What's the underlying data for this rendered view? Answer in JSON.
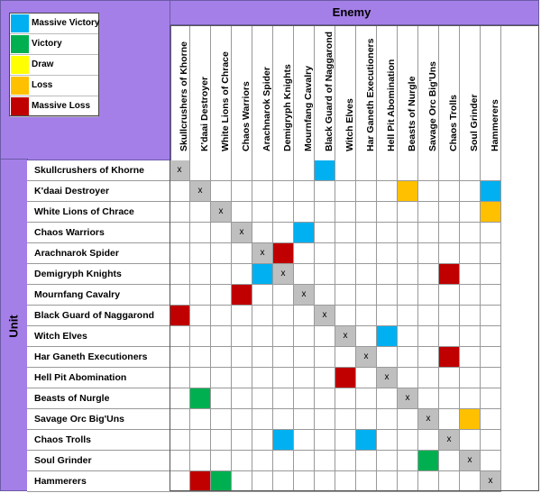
{
  "legend": [
    {
      "label": "Massive Victory",
      "color": "#00b0f0"
    },
    {
      "label": "Victory",
      "color": "#00b050"
    },
    {
      "label": "Draw",
      "color": "#ffff00"
    },
    {
      "label": "Loss",
      "color": "#ffc000"
    },
    {
      "label": "Massive Loss",
      "color": "#c00000"
    }
  ],
  "enemy_title": "Enemy",
  "unit_title": "Unit",
  "units": [
    "Skullcrushers of Khorne",
    "K'daai Destroyer",
    "White Lions of Chrace",
    "Chaos Warriors",
    "Arachnarok Spider",
    "Demigryph Knights",
    "Mournfang Cavalry",
    "Black Guard of Naggarond",
    "Witch Elves",
    "Har Ganeth Executioners",
    "Hell Pit Abomination",
    "Beasts of Nurgle",
    "Savage Orc Big'Uns",
    "Chaos Trolls",
    "Soul Grinder",
    "Hammerers"
  ],
  "self_marker": "x",
  "self_color": "#bfbfbf",
  "results": [
    {
      "row": 0,
      "col": 7,
      "outcome": "Massive Victory"
    },
    {
      "row": 1,
      "col": 11,
      "outcome": "Loss"
    },
    {
      "row": 1,
      "col": 15,
      "outcome": "Massive Victory"
    },
    {
      "row": 2,
      "col": 15,
      "outcome": "Loss"
    },
    {
      "row": 3,
      "col": 6,
      "outcome": "Massive Victory"
    },
    {
      "row": 4,
      "col": 5,
      "outcome": "Massive Loss"
    },
    {
      "row": 5,
      "col": 4,
      "outcome": "Massive Victory"
    },
    {
      "row": 5,
      "col": 13,
      "outcome": "Massive Loss"
    },
    {
      "row": 6,
      "col": 3,
      "outcome": "Massive Loss"
    },
    {
      "row": 7,
      "col": 0,
      "outcome": "Massive Loss"
    },
    {
      "row": 8,
      "col": 10,
      "outcome": "Massive Victory"
    },
    {
      "row": 9,
      "col": 13,
      "outcome": "Massive Loss"
    },
    {
      "row": 10,
      "col": 8,
      "outcome": "Massive Loss"
    },
    {
      "row": 11,
      "col": 1,
      "outcome": "Victory"
    },
    {
      "row": 12,
      "col": 14,
      "outcome": "Loss"
    },
    {
      "row": 13,
      "col": 5,
      "outcome": "Massive Victory"
    },
    {
      "row": 13,
      "col": 9,
      "outcome": "Massive Victory"
    },
    {
      "row": 14,
      "col": 12,
      "outcome": "Victory"
    },
    {
      "row": 15,
      "col": 1,
      "outcome": "Massive Loss"
    },
    {
      "row": 15,
      "col": 2,
      "outcome": "Victory"
    }
  ]
}
